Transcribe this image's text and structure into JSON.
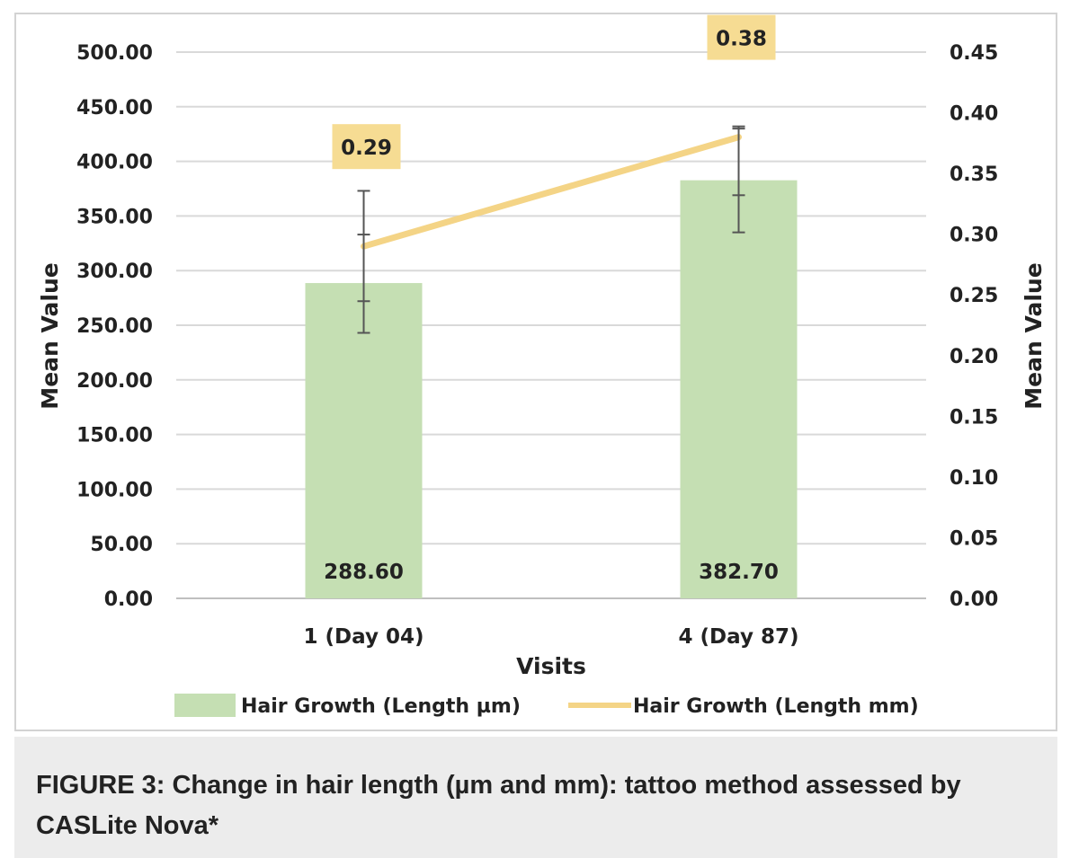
{
  "chart_data": {
    "type": "bar+line",
    "categories": [
      "1 (Day 04)",
      "4 (Day 87)"
    ],
    "xlabel": "Visits",
    "ylabel_left": "Mean Value",
    "ylabel_right": "Mean Value",
    "y_left": {
      "min": 0,
      "max": 500,
      "step": 50,
      "ticks": [
        "0.00",
        "50.00",
        "100.00",
        "150.00",
        "200.00",
        "250.00",
        "300.00",
        "350.00",
        "400.00",
        "450.00",
        "500.00"
      ]
    },
    "y_right": {
      "min": 0,
      "max": 0.45,
      "step": 0.05,
      "ticks": [
        "0.00",
        "0.05",
        "0.10",
        "0.15",
        "0.20",
        "0.25",
        "0.30",
        "0.35",
        "0.40",
        "0.45"
      ]
    },
    "grid": true,
    "series": [
      {
        "name": "Hair Growth (Length µm)",
        "kind": "bar",
        "axis": "left",
        "color": "#c5dfb3",
        "values": [
          288.6,
          382.7
        ],
        "labels": [
          "288.60",
          "382.70"
        ],
        "error_bars": [
          {
            "low": 243,
            "high": 373,
            "inner_low": 272,
            "inner_high": 333
          },
          {
            "low": 335,
            "high": 432,
            "inner_low": 369,
            "inner_high": 430
          }
        ]
      },
      {
        "name": "Hair Growth (Length mm)",
        "kind": "line",
        "axis": "right",
        "color": "#f4d486",
        "label_bg": "#f6dc93",
        "values": [
          0.29,
          0.38
        ],
        "labels": [
          "0.29",
          "0.38"
        ]
      }
    ],
    "legend_position": "bottom"
  },
  "caption": "FIGURE 3: Change in hair length (µm and mm): tattoo method assessed by CASLite Nova*"
}
